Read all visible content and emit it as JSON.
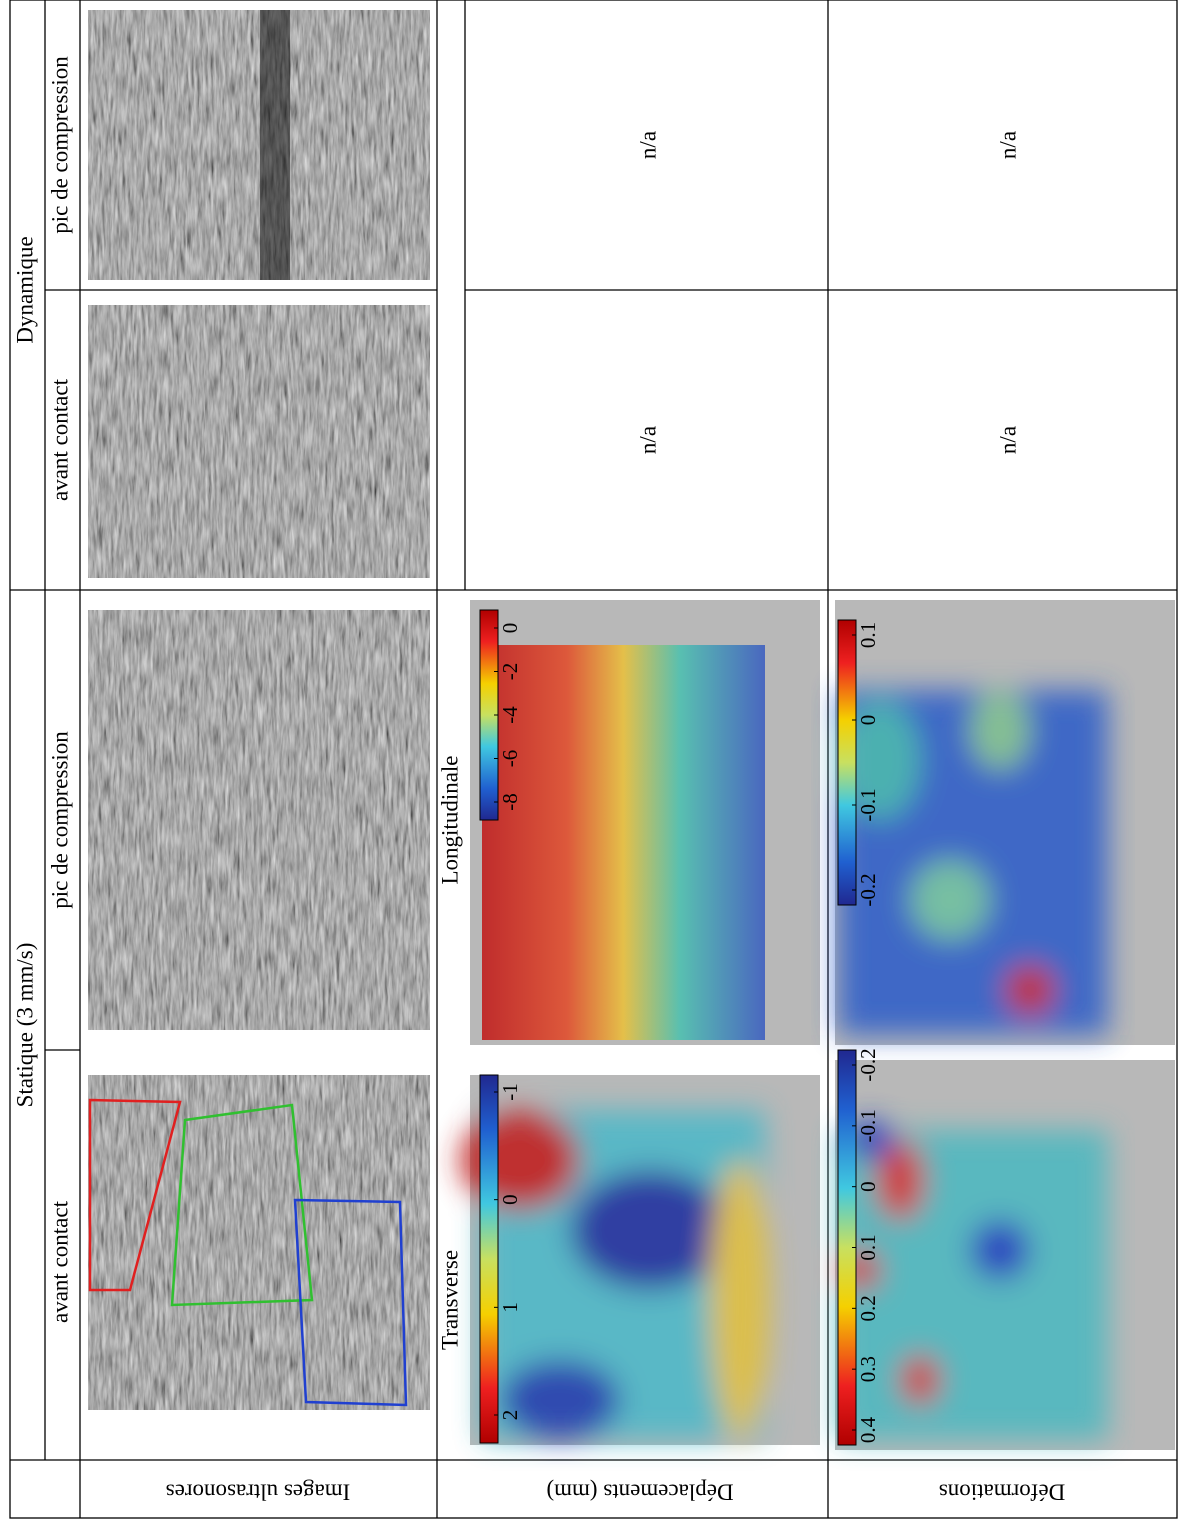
{
  "header": {
    "static": "Statique (3 mm/s)",
    "dynamic": "Dynamique"
  },
  "columns": [
    "pic de compression",
    "avant contact",
    "pic de compression",
    "avant contact"
  ],
  "rows": [
    "Images ultrasonores",
    "Déplacements (mm)",
    "Déformations"
  ],
  "panels": {
    "transverse": "Transverse",
    "longitudinal": "Longitudinale"
  },
  "na": [
    "n/a",
    "n/a",
    "n/a",
    "n/a"
  ],
  "colorbars": {
    "displacement_transverse": [
      "2",
      "1",
      "0",
      "-1"
    ],
    "displacement_longitudinal": [
      "0",
      "-2",
      "-4",
      "-6",
      "-8"
    ],
    "strain_transverse": [
      "0.4",
      "0.3",
      "0.2",
      "0.1",
      "0",
      "-0.1",
      "-0.2"
    ],
    "strain_longitudinal": [
      "0.1",
      "0",
      "-0.1",
      "-0.2"
    ]
  }
}
